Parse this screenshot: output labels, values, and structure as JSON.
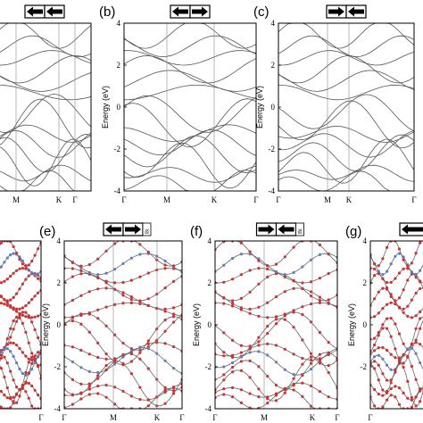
{
  "figure": {
    "colors": {
      "band_gray": "#555555",
      "band_red": "#d03030",
      "band_blue": "#5a7fc8",
      "axis": "#000000"
    },
    "top_row": [
      {
        "label": "",
        "arrow_icons": [
          "arrow-left-icon",
          "arrow-left-icon"
        ],
        "yticks": [],
        "ylabel": "",
        "xticks": [
          "M",
          "K",
          "Γ"
        ]
      },
      {
        "label": "(b)",
        "arrow_icons": [
          "arrow-left-icon",
          "arrow-right-icon"
        ],
        "yticks": [
          "4",
          "2",
          "0",
          "-2",
          "-4"
        ],
        "ylabel": "Energy (eV)",
        "xticks": [
          "Γ",
          "M",
          "K",
          "Γ"
        ]
      },
      {
        "label": "(c)",
        "arrow_icons": [
          "arrow-right-icon",
          "arrow-left-icon"
        ],
        "yticks": [
          "4",
          "2",
          "0",
          "-2",
          "-4"
        ],
        "ylabel": "Energy (eV)",
        "xticks": [
          "Γ",
          "M",
          "K",
          "Γ"
        ]
      }
    ],
    "bottom_row": [
      {
        "label": "",
        "arrow_icons": [],
        "side_tag": "",
        "yticks": [],
        "ylabel": "",
        "xticks": [
          "Γ"
        ]
      },
      {
        "label": "(e)",
        "arrow_icons": [
          "arrow-left-icon",
          "arrow-right-icon"
        ],
        "side_tag": "Bi",
        "yticks": [
          "4",
          "2",
          "0",
          "-2",
          "-4"
        ],
        "ylabel": "Energy (eV)",
        "xticks": [
          "Γ",
          "M",
          "K",
          "Γ"
        ]
      },
      {
        "label": "(f)",
        "arrow_icons": [
          "arrow-right-icon",
          "arrow-left-icon"
        ],
        "side_tag": "Bi",
        "yticks": [
          "4",
          "2",
          "0",
          "-2",
          "-4"
        ],
        "ylabel": "Energy (eV)",
        "xticks": [
          "Γ",
          "M",
          "K",
          "Γ"
        ]
      },
      {
        "label": "(g)",
        "arrow_icons": [],
        "side_tag": "",
        "yticks": [
          "4",
          "2",
          "0",
          "-2"
        ],
        "ylabel": "Energy (eV)",
        "xticks": [
          "Γ"
        ]
      }
    ]
  }
}
